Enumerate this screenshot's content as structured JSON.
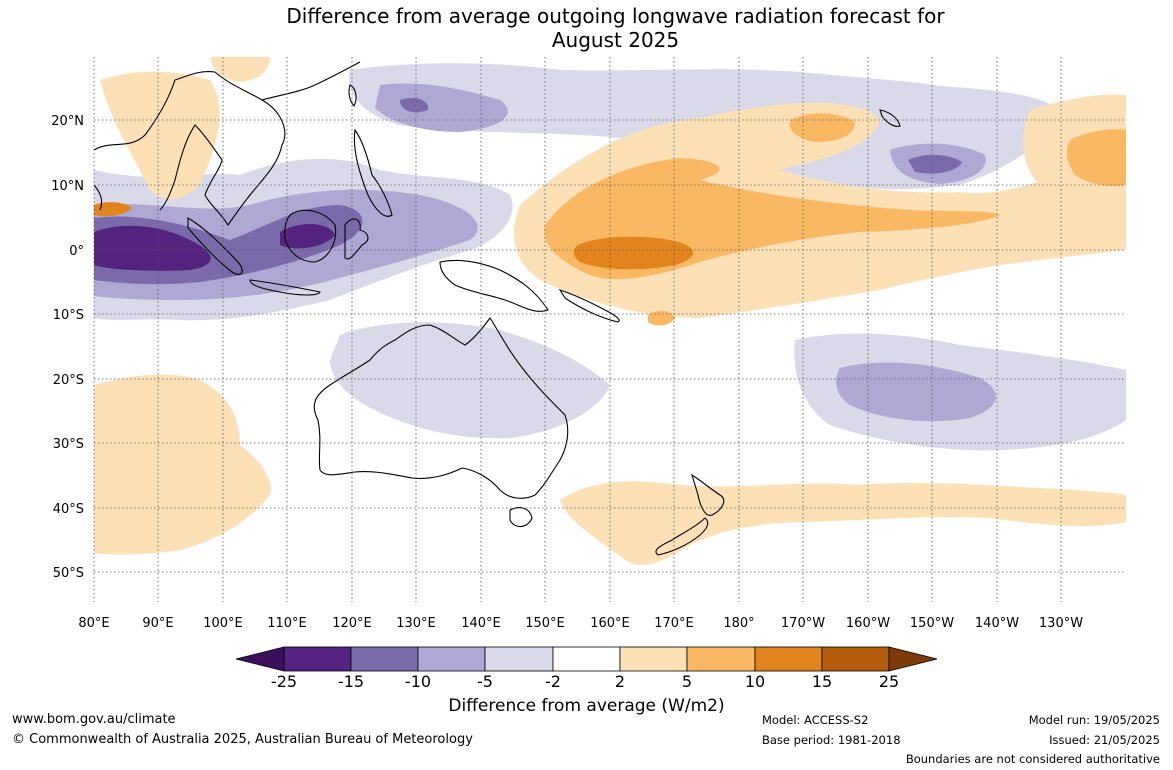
{
  "title": {
    "line1": "Difference from average outgoing longwave radiation forecast for",
    "line2": "August 2025"
  },
  "map": {
    "lon_labels": [
      "80°E",
      "90°E",
      "100°E",
      "110°E",
      "120°E",
      "130°E",
      "140°E",
      "150°E",
      "160°E",
      "170°E",
      "180°",
      "170°W",
      "160°W",
      "150°W",
      "140°W",
      "130°W"
    ],
    "lat_labels": [
      "20°N",
      "10°N",
      "0°",
      "10°S",
      "20°S",
      "30°S",
      "40°S",
      "50°S"
    ],
    "colors": {
      "neg25": "#3b0f5c",
      "neg15": "#54237f",
      "neg10": "#7b6aa9",
      "neg5": "#aea8d3",
      "neg2": "#d9d9ea",
      "pos2": "#fde0b5",
      "pos5": "#fbb863",
      "pos10": "#e1841e",
      "pos15": "#b55d0d",
      "pos25": "#7e3a0a"
    }
  },
  "colorbar": {
    "tick_labels": [
      "-25",
      "-15",
      "-10",
      "-5",
      "-2",
      "2",
      "5",
      "10",
      "15",
      "25"
    ],
    "title": "Difference from average (W/m2)"
  },
  "footer": {
    "website": "www.bom.gov.au/climate",
    "copyright": "© Commonwealth of Australia 2025, Australian Bureau of Meteorology",
    "model": "Model: ACCESS-S2",
    "base_period": "Base period: 1981-2018",
    "model_run": "Model run: 19/05/2025",
    "issued": "Issued: 21/05/2025",
    "boundaries_note": "Boundaries are not considered authoritative"
  }
}
